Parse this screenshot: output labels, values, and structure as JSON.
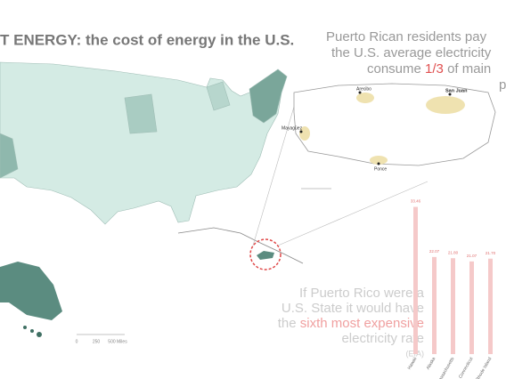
{
  "header": {
    "title": "T ENERGY: the cost of energy in the U.S."
  },
  "headline": {
    "line1": "Puerto Rican residents pay",
    "line2": "the U.S. average electricity",
    "line3_before": "consume ",
    "line3_highlight": "1/3",
    "line3_after": " of main",
    "line4": "p"
  },
  "us_map": {
    "scale_labels": [
      "0",
      "250",
      "500 Miles"
    ]
  },
  "inset": {
    "cities": [
      "Arecibo",
      "San Juan",
      "Mayagüez",
      "Ponce"
    ]
  },
  "callout": {
    "line1": "If Puerto Rico were a",
    "line2": "U.S. State it would have",
    "line3_before": "the ",
    "line3_highlight": "sixth most expensive",
    "line4": "electricity rate",
    "source": "(EIA)"
  },
  "chart_data": {
    "type": "bar",
    "categories": [
      "Hawaii",
      "Alaska",
      "Massachusetts",
      "Connecticut",
      "Rhode Island"
    ],
    "values": [
      33.46,
      22.07,
      21.8,
      21.07,
      21.7
    ],
    "value_labels": [
      "33.46",
      "22.07",
      "21.80",
      "21.07",
      "21.70"
    ],
    "color": "#f5c9c9",
    "label_color": "#e07070",
    "ylim": [
      0,
      36
    ]
  }
}
